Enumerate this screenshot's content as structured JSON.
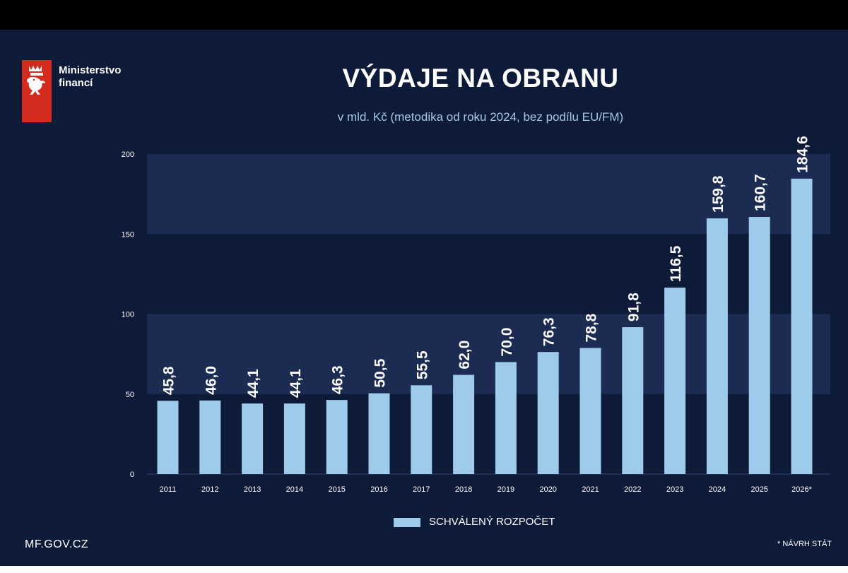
{
  "brand": {
    "name_line1": "Ministerstvo",
    "name_line2": "financí",
    "colors": {
      "red": "#d52b1e",
      "background": "#0d1a38",
      "bar": "#9ecbec"
    }
  },
  "footer": {
    "website": "MF.GOV.CZ",
    "note": "* NÁVRH STÁT"
  },
  "chart_data": {
    "type": "bar",
    "title": "VÝDAJE NA OBRANU",
    "subtitle": "v mld. Kč (metodika od roku 2024, bez podílu EU/FM)",
    "categories": [
      "2011",
      "2012",
      "2013",
      "2014",
      "2015",
      "2016",
      "2017",
      "2018",
      "2019",
      "2020",
      "2021",
      "2022",
      "2023",
      "2024",
      "2025",
      "2026*"
    ],
    "series": [
      {
        "name": "SCHVÁLENÝ ROZPOČET",
        "values": [
          45.8,
          46.0,
          44.1,
          44.1,
          46.3,
          50.5,
          55.5,
          62.0,
          70.0,
          76.3,
          78.8,
          91.8,
          116.5,
          159.8,
          160.7,
          184.6
        ],
        "labels": [
          "45,8",
          "46,0",
          "44,1",
          "44,1",
          "46,3",
          "50,5",
          "55,5",
          "62,0",
          "70,0",
          "76,3",
          "78,8",
          "91,8",
          "116,5",
          "159,8",
          "160,7",
          "184,6"
        ]
      }
    ],
    "y_ticks": [
      0,
      50,
      100,
      150,
      200
    ],
    "ylim": [
      0,
      200
    ],
    "xlabel": "",
    "ylabel": "",
    "legend_position": "bottom-center",
    "grid": "alternating horizontal bands"
  }
}
